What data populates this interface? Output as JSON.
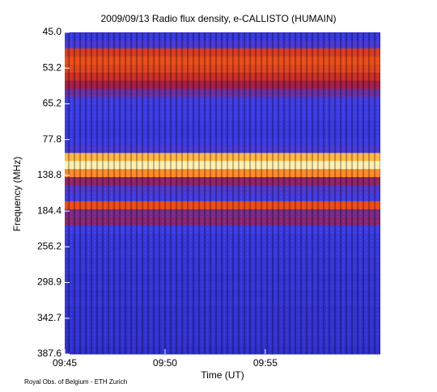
{
  "chart_data": {
    "type": "spectrogram",
    "title": "2009/09/13  Radio flux density, e-CALLISTO (HUMAIN)",
    "x_label": "Time (UT)",
    "y_label": "Frequency (MHz)",
    "footer": "Royal Obs. of Belgium - ETH Zurich",
    "xlim": [
      "09:45:00",
      "10:00:44"
    ],
    "xticks": [
      "09:45",
      "09:50",
      "09:55"
    ],
    "yticks": [
      {
        "value": 45,
        "label": "45.0"
      },
      {
        "value": 53.2,
        "label": "53.2"
      },
      {
        "value": 65.2,
        "label": "65.2"
      },
      {
        "value": 77.8,
        "label": "77.8"
      },
      {
        "value": 138.8,
        "label": "138.8"
      },
      {
        "value": 184.4,
        "label": "184.4"
      },
      {
        "value": 256.2,
        "label": "256.2"
      },
      {
        "value": 298.9,
        "label": "298.9"
      },
      {
        "value": 342.7,
        "label": "342.7"
      },
      {
        "value": 387.6,
        "label": "387.6"
      }
    ],
    "colormap": [
      "#0a0a50",
      "#2222b4",
      "#3c3ce6",
      "#b01830",
      "#ff6010",
      "#ffe060",
      "#ffffff"
    ],
    "values": [
      30,
      35,
      58,
      62,
      60,
      55,
      48,
      40,
      34,
      32,
      33,
      31,
      30,
      32,
      35,
      78,
      92,
      72,
      45,
      36,
      34,
      62,
      42,
      44,
      33,
      30,
      29,
      30,
      28,
      29,
      27,
      28,
      27,
      28,
      26,
      27,
      26,
      27,
      26,
      25
    ]
  }
}
